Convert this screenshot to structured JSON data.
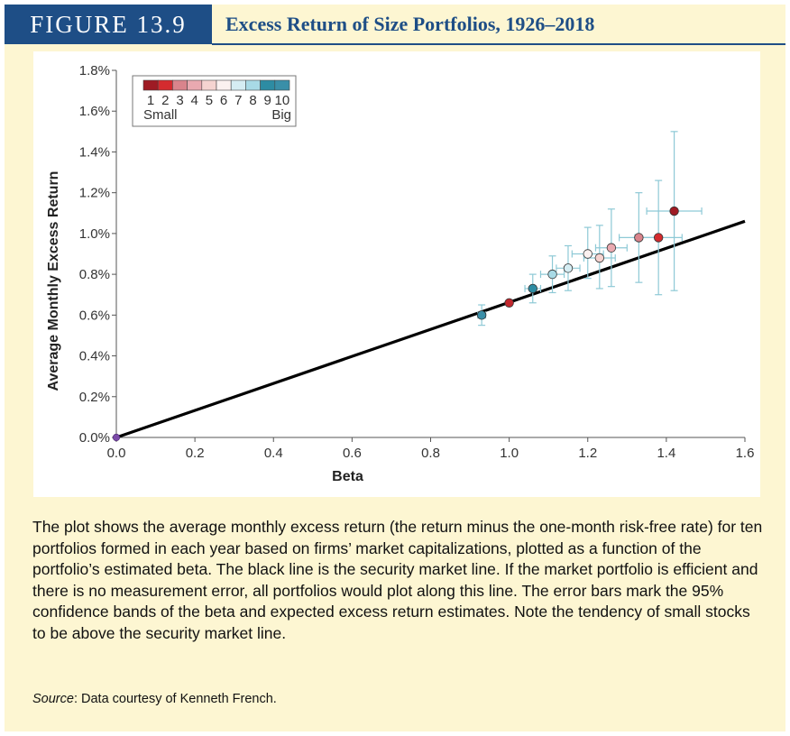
{
  "figure": {
    "label": "FIGURE 13.9",
    "title": "Excess Return of Size Portfolios, 1926–2018"
  },
  "caption": "The plot shows the average monthly excess return (the return minus the one-month risk-free rate) for ten portfolios formed in each year based on firms’ market capitalizations, plotted as a function of the portfolio’s estimated beta. The black line is the security market line. If the market portfolio is efficient and there is no measurement error, all portfolios would plot along this line. The error bars mark the 95% confidence bands of the beta and expected excess return estimates. Note the tendency of small stocks to be above the security market line.",
  "source": {
    "label": "Source",
    "text": ": Data courtesy of Kenneth French."
  },
  "chart_data": {
    "type": "scatter",
    "xlabel": "Beta",
    "ylabel": "Average Monthly Excess Return",
    "xlim": [
      0,
      1.6
    ],
    "ylim": [
      0,
      1.8
    ],
    "xticks": [
      "0.0",
      "0.2",
      "0.4",
      "0.6",
      "0.8",
      "1.0",
      "1.2",
      "1.4",
      "1.6"
    ],
    "yticks": [
      "0.0%",
      "0.2%",
      "0.4%",
      "0.6%",
      "0.8%",
      "1.0%",
      "1.2%",
      "1.4%",
      "1.6%",
      "1.8%"
    ],
    "legend": {
      "position": "top-left",
      "labels": [
        "1",
        "2",
        "3",
        "4",
        "5",
        "6",
        "7",
        "8",
        "9",
        "10"
      ],
      "small_label": "Small",
      "big_label": "Big"
    },
    "security_market_line": {
      "x": [
        0,
        1.6
      ],
      "y": [
        0,
        1.06
      ],
      "color": "#000000"
    },
    "market_point": {
      "x": 0,
      "y": 0,
      "color": "#7b4aa8"
    },
    "error_bar_color": "#8ec9d6",
    "series": [
      {
        "name": "1",
        "color": "#9e1b24",
        "beta": 1.42,
        "ret": 1.11,
        "beta_ci": [
          1.35,
          1.49
        ],
        "ret_ci": [
          0.72,
          1.5
        ]
      },
      {
        "name": "2",
        "color": "#d42b2f",
        "beta": 1.38,
        "ret": 0.98,
        "beta_ci": [
          1.32,
          1.44
        ],
        "ret_ci": [
          0.7,
          1.26
        ]
      },
      {
        "name": "3",
        "color": "#d9848c",
        "beta": 1.33,
        "ret": 0.98,
        "beta_ci": [
          1.28,
          1.38
        ],
        "ret_ci": [
          0.76,
          1.2
        ]
      },
      {
        "name": "4",
        "color": "#e9a9b0",
        "beta": 1.26,
        "ret": 0.93,
        "beta_ci": [
          1.22,
          1.3
        ],
        "ret_ci": [
          0.74,
          1.12
        ]
      },
      {
        "name": "5",
        "color": "#f5d3d0",
        "beta": 1.23,
        "ret": 0.88,
        "beta_ci": [
          1.19,
          1.27
        ],
        "ret_ci": [
          0.73,
          1.04
        ]
      },
      {
        "name": "6",
        "color": "#fbf1f0",
        "beta": 1.2,
        "ret": 0.9,
        "beta_ci": [
          1.16,
          1.24
        ],
        "ret_ci": [
          0.78,
          1.03
        ]
      },
      {
        "name": "7",
        "color": "#d5edf3",
        "beta": 1.15,
        "ret": 0.83,
        "beta_ci": [
          1.12,
          1.18
        ],
        "ret_ci": [
          0.72,
          0.94
        ]
      },
      {
        "name": "8",
        "color": "#a8dae6",
        "beta": 1.11,
        "ret": 0.8,
        "beta_ci": [
          1.08,
          1.14
        ],
        "ret_ci": [
          0.71,
          0.89
        ]
      },
      {
        "name": "9",
        "color": "#2d8ca3",
        "beta": 1.06,
        "ret": 0.73,
        "beta_ci": [
          1.04,
          1.08
        ],
        "ret_ci": [
          0.66,
          0.8
        ]
      },
      {
        "name": "10",
        "color": "#3a8fa8",
        "beta": 0.93,
        "ret": 0.6,
        "beta_ci": [
          0.92,
          0.94
        ],
        "ret_ci": [
          0.55,
          0.65
        ]
      },
      {
        "name": "market",
        "color": "#c1272d",
        "beta": 1.0,
        "ret": 0.66,
        "beta_ci": [
          1.0,
          1.0
        ],
        "ret_ci": [
          0.66,
          0.66
        ]
      }
    ]
  }
}
